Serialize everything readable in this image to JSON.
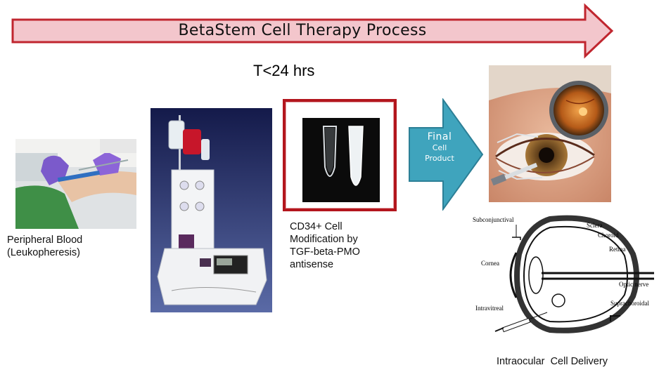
{
  "header": {
    "title": "BetaStem Cell Therapy Process",
    "timing": "T<24 hrs"
  },
  "colors": {
    "arrow_fill": "#f3c6cc",
    "arrow_stroke": "#c0262f",
    "box_border": "#b3161d",
    "teal_arrow": "#3fa4bd"
  },
  "steps": {
    "collection_label_line1": "Peripheral Blood",
    "collection_label_line2": "(Leukopheresis)",
    "modification_label_line1": "CD34+ Cell",
    "modification_label_line2": "Modification by",
    "modification_label_line3": "TGF-beta-PMO",
    "modification_label_line4": "antisense",
    "final_line1": "Final",
    "final_line2": "Cell",
    "final_line3": "Product",
    "delivery_label": "Intraocular  Cell Delivery"
  },
  "eye_diagram": {
    "subconjunctival": "Subconjunctival",
    "sclera": "Sclera",
    "choroid": "Choroid",
    "retina": "Retina",
    "cornea": "Cornea",
    "optic_nerve": "Optic nerve",
    "intravitreal": "Intravitreal",
    "suprachoroidal": "Suprachoroidal"
  }
}
